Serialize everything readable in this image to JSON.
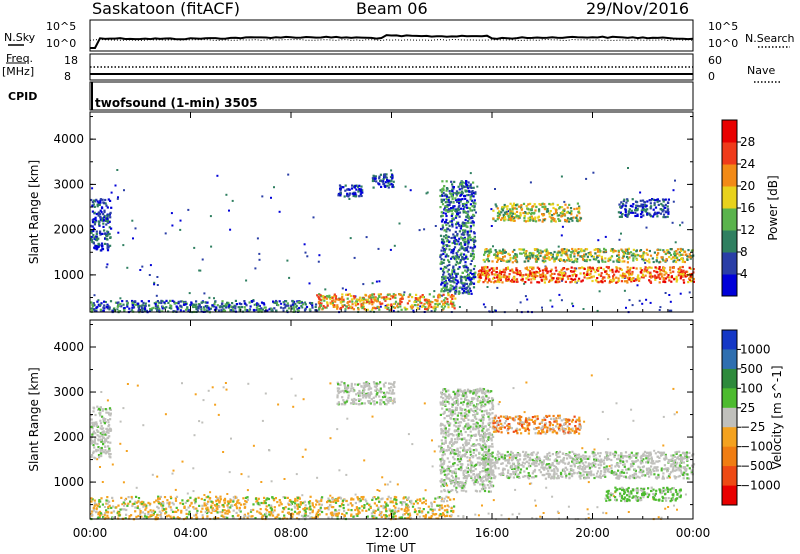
{
  "header": {
    "station": "Saskatoon (fitACF)",
    "beam": "Beam 06",
    "date": "29/Nov/2016"
  },
  "aux": {
    "nsky_label": "N.Sky",
    "nsearch_label": "N.Search",
    "nsky_tick_high": "10^5",
    "nsky_tick_low": "10^0",
    "nsearch_tick_high": "10^5",
    "nsearch_tick_low": "10^0",
    "freq_label": "Freq.",
    "freq_unit": "[MHz]",
    "freq_tick_high": "18",
    "freq_tick_low": "8",
    "nave_label": "Nave",
    "nave_tick_high": "60",
    "nave_tick_low": "0",
    "cpid_label": "CPID",
    "cpid_value": "twofsound (1-min) 3505"
  },
  "colors": {
    "power_scale": [
      "#0000d8",
      "#2a3ea6",
      "#2f7f60",
      "#5ab34c",
      "#e8d21c",
      "#f28a16",
      "#ef3b1b",
      "#e80000"
    ],
    "velocity_scale": [
      "#1538c6",
      "#2f6fb0",
      "#2e8a3c",
      "#4dbb2f",
      "#c0c0bc",
      "#f4a21f",
      "#f07d12",
      "#ee4a14",
      "#e80000"
    ]
  },
  "chart_data": [
    {
      "type": "heatmap",
      "panel": "power",
      "ylabel": "Slant Range [km]",
      "y_ticks": [
        "1000",
        "2000",
        "3000",
        "4000"
      ],
      "ylim": [
        180,
        4600
      ],
      "xlim_hours": [
        0,
        24
      ],
      "colorbar_label": "Power [dB]",
      "colorbar_ticks": [
        "4",
        "8",
        "12",
        "16",
        "20",
        "24",
        "28"
      ],
      "colorbar_range": [
        0,
        32
      ],
      "echo_regions": [
        {
          "t": [
            0.0,
            0.8
          ],
          "range_km": [
            1550,
            2700
          ],
          "level": "low"
        },
        {
          "t": [
            9.8,
            10.8
          ],
          "range_km": [
            2750,
            3000
          ],
          "level": "low"
        },
        {
          "t": [
            11.2,
            12.1
          ],
          "range_km": [
            2950,
            3250
          ],
          "level": "low"
        },
        {
          "t": [
            13.9,
            15.3
          ],
          "range_km": [
            600,
            3100
          ],
          "level": "low-mid"
        },
        {
          "t": [
            15.4,
            24.0
          ],
          "range_km": [
            850,
            1200
          ],
          "level": "high"
        },
        {
          "t": [
            15.6,
            24.0
          ],
          "range_km": [
            1300,
            1600
          ],
          "level": "mid"
        },
        {
          "t": [
            16.0,
            19.5
          ],
          "range_km": [
            2200,
            2600
          ],
          "level": "mid"
        },
        {
          "t": [
            21.0,
            23.0
          ],
          "range_km": [
            2300,
            2700
          ],
          "level": "low"
        },
        {
          "t": [
            9.0,
            14.5
          ],
          "range_km": [
            250,
            600
          ],
          "level": "mid-high"
        },
        {
          "t": [
            0.0,
            9.0
          ],
          "range_km": [
            200,
            450
          ],
          "level": "low-mid"
        }
      ]
    },
    {
      "type": "heatmap",
      "panel": "velocity",
      "ylabel": "Slant Range [km]",
      "xlabel": "Time UT",
      "x_ticks": [
        "00:00",
        "04:00",
        "08:00",
        "12:00",
        "16:00",
        "20:00",
        "00:00"
      ],
      "y_ticks": [
        "1000",
        "2000",
        "3000",
        "4000"
      ],
      "ylim": [
        180,
        4600
      ],
      "xlim_hours": [
        0,
        24
      ],
      "colorbar_label": "Velocity [m s^-1]",
      "colorbar_ticks": [
        "1000",
        "500",
        "100",
        "25",
        "−25",
        "−100",
        "−500",
        "−1000"
      ],
      "echo_regions": [
        {
          "t": [
            0.0,
            0.8
          ],
          "range_km": [
            1550,
            2700
          ],
          "velocity": "near-zero"
        },
        {
          "t": [
            9.8,
            12.1
          ],
          "range_km": [
            2750,
            3250
          ],
          "velocity": "near-zero"
        },
        {
          "t": [
            13.9,
            16.0
          ],
          "range_km": [
            800,
            3100
          ],
          "velocity": "near-zero"
        },
        {
          "t": [
            15.6,
            24.0
          ],
          "range_km": [
            1100,
            1700
          ],
          "velocity": "near-zero"
        },
        {
          "t": [
            16.0,
            19.5
          ],
          "range_km": [
            2100,
            2500
          ],
          "velocity": "-100 to -500"
        },
        {
          "t": [
            20.5,
            23.5
          ],
          "range_km": [
            600,
            900
          ],
          "velocity": "+100"
        },
        {
          "t": [
            0.0,
            14.5
          ],
          "range_km": [
            200,
            700
          ],
          "velocity": "-25 to -100"
        }
      ]
    }
  ]
}
